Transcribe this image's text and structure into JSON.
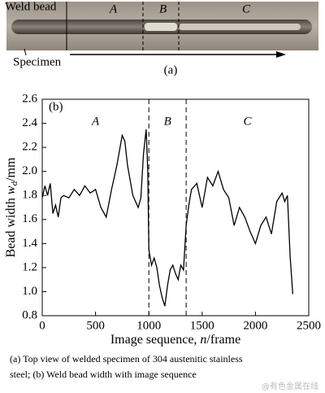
{
  "photo": {
    "labels": {
      "weld_bead": "Weld bead",
      "specimen": "Specimen",
      "A": "A",
      "B": "B",
      "C": "C"
    },
    "panel": "(a)"
  },
  "chart_data": {
    "type": "line",
    "panel": "(b)",
    "x_label": {
      "text": "Image sequence, ",
      "var": "n",
      "unit": "/frame"
    },
    "y_label": {
      "text": "Bead width ",
      "var": "w",
      "sub": "d",
      "unit": "/mm"
    },
    "regions": [
      "A",
      "B",
      "C"
    ],
    "region_boundaries": [
      1000,
      1350
    ],
    "x": [
      0,
      25,
      50,
      75,
      100,
      125,
      150,
      175,
      200,
      250,
      300,
      350,
      400,
      450,
      500,
      550,
      600,
      650,
      700,
      750,
      775,
      800,
      850,
      900,
      925,
      950,
      975,
      990,
      1000,
      1025,
      1050,
      1075,
      1100,
      1125,
      1150,
      1175,
      1200,
      1225,
      1250,
      1275,
      1300,
      1325,
      1350,
      1375,
      1400,
      1450,
      1500,
      1550,
      1600,
      1650,
      1700,
      1750,
      1800,
      1850,
      1900,
      1950,
      2000,
      2050,
      2100,
      2150,
      2200,
      2250,
      2275,
      2300,
      2325,
      2350
    ],
    "series": [
      {
        "color": "#000000",
        "values": [
          1.78,
          1.88,
          1.8,
          1.9,
          1.65,
          1.72,
          1.62,
          1.78,
          1.8,
          1.78,
          1.85,
          1.8,
          1.88,
          1.82,
          1.85,
          1.7,
          1.62,
          1.85,
          2.05,
          2.3,
          2.25,
          2.05,
          1.8,
          1.7,
          1.78,
          2.15,
          2.35,
          2.0,
          1.35,
          1.22,
          1.28,
          1.2,
          1.05,
          0.95,
          0.88,
          1.05,
          1.18,
          1.22,
          1.15,
          1.1,
          1.22,
          1.18,
          1.55,
          1.72,
          1.85,
          1.9,
          1.7,
          1.95,
          1.88,
          2.0,
          1.85,
          1.78,
          1.55,
          1.7,
          1.62,
          1.5,
          1.4,
          1.55,
          1.62,
          1.48,
          1.75,
          1.82,
          1.75,
          1.8,
          1.3,
          0.98
        ]
      }
    ],
    "xlim": [
      0,
      2500
    ],
    "xticks": [
      0,
      500,
      1000,
      1500,
      2000,
      2500
    ],
    "ylim": [
      0.8,
      2.6
    ],
    "yticks": [
      0.8,
      {
        "value": 1,
        "label": "1.0"
      },
      1.2,
      1.4,
      1.6,
      1.8,
      {
        "value": 2,
        "label": "2.0"
      },
      2.2,
      2.4,
      2.6
    ]
  },
  "caption": {
    "line1": "(a) Top view of welded specimen of 304 austenitic stainless",
    "line2": "steel; (b) Weld bead width with image sequence"
  },
  "watermark": "@有色金属在线"
}
